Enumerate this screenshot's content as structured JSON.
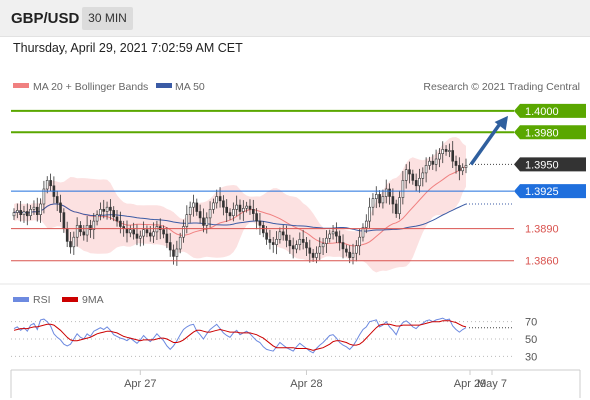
{
  "header": {
    "symbol": "GBP/USD",
    "timeframe": "30 MIN",
    "datetime": "Thursday, April 29, 2021 7:02:59 AM CET"
  },
  "legend": {
    "ma20": "MA 20 + Bollinger Bands",
    "ma50": "MA 50",
    "credit": "Research © 2021 Trading Central"
  },
  "rsi_legend": {
    "rsi": "RSI",
    "ma": "9MA"
  },
  "colors": {
    "up_candle": "#ffffff",
    "down_candle": "#333333",
    "bollinger_fill": "#fcdede",
    "ma20": "#f08080",
    "ma50": "#3b5ba5",
    "resistance": "#5aa700",
    "pivot": "#1f6fdd",
    "support": "#d9534f",
    "current": "#333333",
    "arrow": "#2f5f9e",
    "rsi_line": "#6d8ae0",
    "rsi_ma": "#cc0000"
  },
  "chart_data": [
    {
      "type": "candlestick",
      "title": "GBP/USD",
      "timeframe": "30 MIN",
      "x_tick_labels": [
        "Apr 27",
        "Apr 28",
        "Apr 29",
        "May 7"
      ],
      "ylim": [
        1.3842,
        1.4012
      ],
      "current_price": "1.3950",
      "levels": [
        {
          "label": "1.4000",
          "value": 1.4,
          "type": "resistance"
        },
        {
          "label": "1.3980",
          "value": 1.398,
          "type": "resistance"
        },
        {
          "label": "1.3950",
          "value": 1.395,
          "type": "current"
        },
        {
          "label": "1.3925",
          "value": 1.3925,
          "type": "pivot"
        },
        {
          "label": "1.3890",
          "value": 1.389,
          "type": "support"
        },
        {
          "label": "1.3860",
          "value": 1.386,
          "type": "support"
        }
      ],
      "series": [
        {
          "name": "MA 20 + Bollinger Bands",
          "values": []
        },
        {
          "name": "MA 50",
          "values": []
        }
      ],
      "close": [
        1.3905,
        1.3907,
        1.3903,
        1.3906,
        1.3902,
        1.3908,
        1.391,
        1.3903,
        1.3913,
        1.3927,
        1.3935,
        1.393,
        1.392,
        1.3914,
        1.3905,
        1.389,
        1.3878,
        1.3873,
        1.3882,
        1.3893,
        1.3887,
        1.3884,
        1.3893,
        1.3889,
        1.3897,
        1.3903,
        1.3908,
        1.3906,
        1.391,
        1.3907,
        1.3901,
        1.3897,
        1.3892,
        1.389,
        1.3886,
        1.3889,
        1.3885,
        1.3881,
        1.3883,
        1.3889,
        1.3886,
        1.3883,
        1.3887,
        1.3892,
        1.3889,
        1.3885,
        1.3877,
        1.387,
        1.3864,
        1.3871,
        1.3882,
        1.3892,
        1.3903,
        1.391,
        1.3914,
        1.3906,
        1.39,
        1.3893,
        1.39,
        1.3908,
        1.3914,
        1.392,
        1.3916,
        1.391,
        1.3905,
        1.3902,
        1.3908,
        1.3912,
        1.3906,
        1.3909,
        1.3911,
        1.3908,
        1.3904,
        1.3897,
        1.3893,
        1.3886,
        1.388,
        1.3877,
        1.3875,
        1.388,
        1.3887,
        1.3884,
        1.3879,
        1.3874,
        1.3871,
        1.3875,
        1.388,
        1.3877,
        1.3872,
        1.3867,
        1.3863,
        1.3867,
        1.3873,
        1.3876,
        1.3881,
        1.3885,
        1.3887,
        1.3883,
        1.3877,
        1.3871,
        1.3868,
        1.3863,
        1.3867,
        1.3874,
        1.3882,
        1.3891,
        1.3897,
        1.391,
        1.3918,
        1.3922,
        1.3914,
        1.392,
        1.3927,
        1.392,
        1.3913,
        1.3904,
        1.3919,
        1.3935,
        1.3945,
        1.3941,
        1.3935,
        1.393,
        1.3937,
        1.3942,
        1.3949,
        1.3953,
        1.395,
        1.3955,
        1.396,
        1.3964,
        1.3962,
        1.3963,
        1.3953,
        1.3949,
        1.3944,
        1.3947,
        1.3949
      ],
      "rsi": {
        "levels": [
          70,
          50,
          30
        ],
        "ylim": [
          20,
          80
        ],
        "rsi": [
          62,
          64,
          60,
          63,
          59,
          66,
          68,
          61,
          72,
          73,
          70,
          65,
          56,
          52,
          49,
          44,
          42,
          44,
          50,
          56,
          52,
          50,
          56,
          53,
          59,
          61,
          63,
          61,
          64,
          60,
          55,
          53,
          51,
          50,
          48,
          51,
          48,
          45,
          49,
          54,
          50,
          47,
          51,
          56,
          52,
          48,
          42,
          38,
          42,
          48,
          55,
          61,
          64,
          66,
          67,
          59,
          55,
          50,
          56,
          61,
          64,
          67,
          62,
          57,
          54,
          52,
          57,
          60,
          55,
          57,
          59,
          56,
          52,
          48,
          46,
          41,
          38,
          37,
          36,
          41,
          46,
          43,
          40,
          38,
          36,
          41,
          45,
          42,
          39,
          36,
          34,
          39,
          43,
          46,
          50,
          54,
          55,
          51,
          46,
          43,
          41,
          38,
          42,
          48,
          55,
          61,
          64,
          70,
          71,
          72,
          64,
          66,
          70,
          64,
          60,
          55,
          64,
          69,
          71,
          68,
          64,
          62,
          66,
          68,
          71,
          72,
          70,
          72,
          73,
          74,
          72,
          73,
          65,
          61,
          58,
          61,
          63
        ],
        "ma": [
          60,
          61,
          62,
          62,
          62,
          63,
          64,
          64,
          65,
          66,
          67,
          67,
          66,
          63,
          60,
          56,
          52,
          49,
          48,
          48,
          49,
          50,
          51,
          52,
          54,
          56,
          57,
          58,
          59,
          59,
          58,
          57,
          55,
          53,
          52,
          51,
          50,
          49,
          48,
          49,
          49,
          49,
          49,
          50,
          51,
          51,
          50,
          48,
          46,
          46,
          47,
          49,
          52,
          55,
          58,
          60,
          60,
          59,
          58,
          58,
          59,
          60,
          61,
          60,
          59,
          58,
          58,
          58,
          57,
          57,
          57,
          57,
          56,
          55,
          53,
          51,
          48,
          45,
          42,
          40,
          40,
          40,
          40,
          40,
          40,
          39,
          39,
          39,
          39,
          38,
          37,
          38,
          39,
          40,
          42,
          44,
          47,
          48,
          48,
          47,
          46,
          44,
          43,
          43,
          44,
          47,
          51,
          55,
          59,
          63,
          66,
          67,
          67,
          67,
          66,
          65,
          65,
          66,
          66,
          66,
          66,
          66,
          66,
          67,
          68,
          69,
          70,
          70,
          70,
          71,
          71,
          71,
          70,
          69,
          67,
          65,
          64
        ]
      }
    }
  ]
}
